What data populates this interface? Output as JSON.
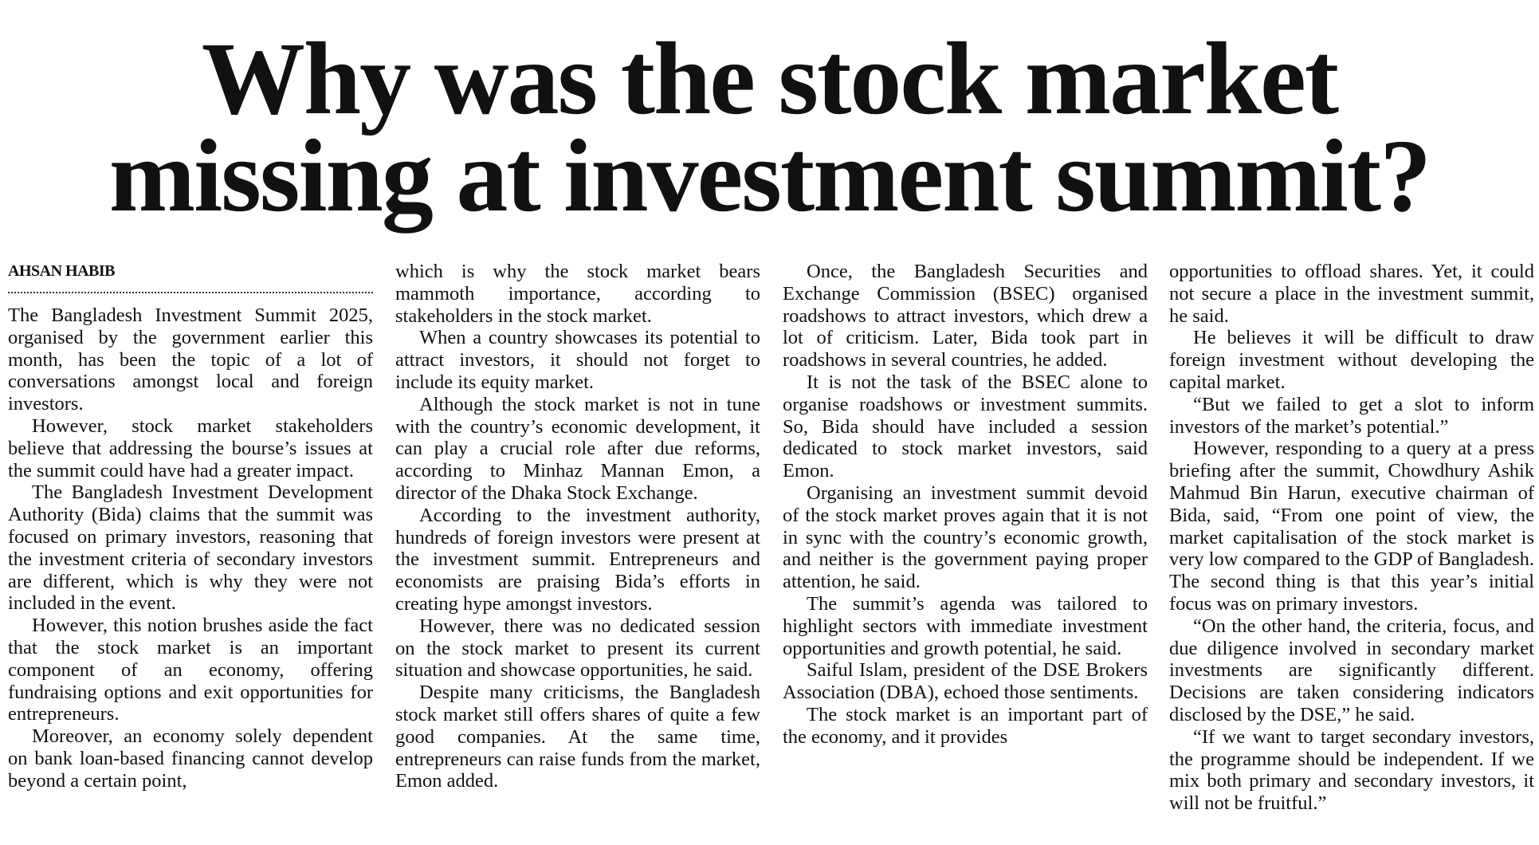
{
  "headline": {
    "line1": "Why was the stock market",
    "line2": "missing at investment summit?"
  },
  "byline": "AHSAN HABIB",
  "columns": [
    {
      "continues_from_previous": false,
      "paragraphs": [
        "The Bangladesh Investment Summit 2025, organised by the government earlier this month, has been the topic of a lot of conversations amongst local and foreign investors.",
        "However, stock market stakeholders believe that addressing the bourse’s issues at the summit could have had a greater impact.",
        "The Bangladesh Investment Development Authority (Bida) claims that the summit was focused on primary investors, reasoning that the investment criteria of secondary investors are different, which is why they were not included in the event.",
        "However, this notion brushes aside the fact that the stock market is an important component of an economy, offering fundraising options and exit opportunities for entrepreneurs.",
        "Moreover, an economy solely dependent on bank loan-based financing cannot develop beyond a certain point,"
      ]
    },
    {
      "continues_from_previous": true,
      "paragraphs": [
        "which is why the stock market bears mammoth importance, according to stakeholders in the stock market.",
        "When a country showcases its potential to attract investors, it should not forget to include its equity market.",
        "Although the stock market is not in tune with the country’s economic development, it can play a crucial role after due reforms, according to Minhaz Mannan Emon, a director of the Dhaka Stock Exchange.",
        "According to the investment authority, hundreds of foreign investors were present at the investment summit. Entrepreneurs and economists are praising Bida’s efforts in creating hype amongst investors.",
        "However, there was no dedicated session on the stock market to present its current situation and showcase opportunities, he said.",
        "Despite many criticisms, the Bangladesh stock market still offers shares of quite a few good companies. At the same time, entrepreneurs can raise funds from the market, Emon added."
      ]
    },
    {
      "continues_from_previous": false,
      "paragraphs": [
        "Once, the Bangladesh Securities and Exchange Commission (BSEC) organised roadshows to attract investors, which drew a lot of criticism. Later, Bida took part in roadshows in several countries, he added.",
        "It is not the task of the BSEC alone to organise roadshows or investment summits. So, Bida should have included a session dedicated to stock market investors, said Emon.",
        "Organising an investment summit devoid of the stock market proves again that it is not in sync with the country’s economic growth, and neither is the government paying proper attention, he said.",
        "The summit’s agenda was tailored to highlight sectors with immediate investment opportunities and growth potential, he said.",
        "Saiful Islam, president of the DSE Brokers Association (DBA), echoed those sentiments.",
        "The stock market is an important part of the economy, and it provides"
      ]
    },
    {
      "continues_from_previous": true,
      "paragraphs": [
        "opportunities to offload shares. Yet, it could not secure a place in the investment summit, he said.",
        "He believes it will be difficult to draw foreign investment without developing the capital market.",
        "“But we failed to get a slot to inform investors of the market’s potential.”",
        "However, responding to a query at a press briefing after the summit, Chowdhury Ashik Mahmud Bin Harun, executive chairman of Bida, said, “From one point of view, the market capitalisation of the stock market is very low compared to the GDP of Bangladesh. The second thing is that this year’s initial focus was on primary investors.",
        "“On the other hand, the criteria, focus, and due diligence involved in secondary market investments are significantly different. Decisions are taken considering indicators disclosed by the DSE,” he said.",
        "“If we want to target secondary investors, the programme should be independent. If we mix both primary and secondary investors, it will not be fruitful.”"
      ]
    }
  ]
}
